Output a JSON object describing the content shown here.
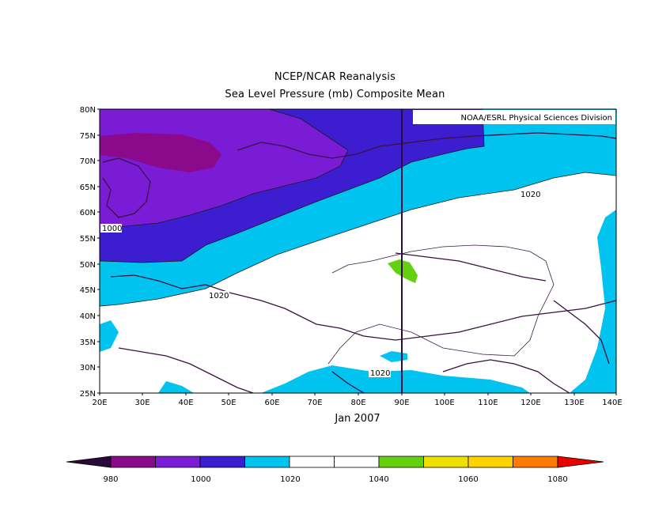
{
  "title": "NCEP/NCAR Reanalysis",
  "subtitle": "Sea Level Pressure (mb) Composite Mean",
  "credit": "NOAA/ESRL Physical Sciences Division",
  "period": "Jan 2007",
  "lat_ticks": [
    "80N",
    "75N",
    "70N",
    "65N",
    "60N",
    "55N",
    "50N",
    "45N",
    "40N",
    "35N",
    "30N",
    "25N"
  ],
  "lon_ticks": [
    "20E",
    "30E",
    "40E",
    "50E",
    "60E",
    "70E",
    "80E",
    "90E",
    "100E",
    "110E",
    "120E",
    "130E",
    "140E"
  ],
  "contour_labels": [
    "1000",
    "1020",
    "1020",
    "1020"
  ],
  "colorbar": {
    "labels": [
      "980",
      "1000",
      "1020",
      "1040",
      "1060",
      "1080"
    ],
    "colors": [
      "#2a0a3a",
      "#8b0a8b",
      "#7a1cd6",
      "#3c1ed0",
      "#00c3f0",
      "#ffffff",
      "#ffffff",
      "#64d010",
      "#f0e000",
      "#ffd200",
      "#ff7a00",
      "#e80000"
    ]
  },
  "chart_data": {
    "type": "heatmap",
    "title": "NCEP/NCAR Reanalysis",
    "subtitle": "Sea Level Pressure (mb) Composite Mean",
    "variable": "Sea Level Pressure (mb)",
    "xlim": [
      20,
      140
    ],
    "ylim": [
      25,
      80
    ],
    "contour_interval": 10,
    "contours_labeled": [
      1000,
      1020
    ],
    "levels": [
      980,
      990,
      1000,
      1010,
      1020,
      1030,
      1040,
      1050,
      1060,
      1070,
      1080
    ],
    "max_region": "1040-1050 near 90E 48N",
    "min_region": "990-1000 near 30E 72N",
    "reference_meridian": 90
  }
}
